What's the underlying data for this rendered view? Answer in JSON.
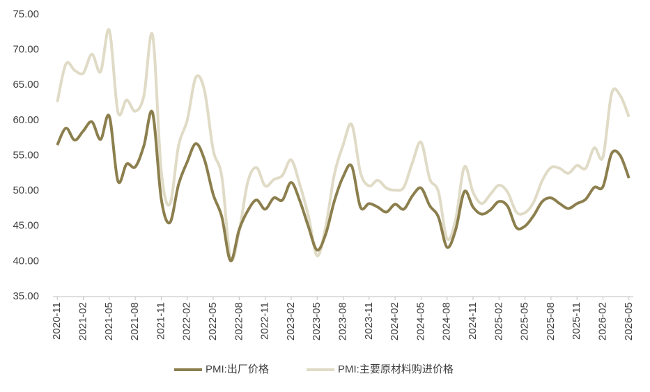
{
  "chart_data": {
    "type": "line",
    "categories": [
      "2020-11",
      null,
      null,
      "2021-02",
      null,
      null,
      "2021-05",
      null,
      null,
      "2021-08",
      null,
      null,
      "2021-11",
      null,
      null,
      "2022-02",
      null,
      null,
      "2022-05",
      null,
      null,
      "2022-08",
      null,
      null,
      "2022-11",
      null,
      null,
      "2023-02",
      null,
      null,
      "2023-05",
      null,
      null,
      "2023-08",
      null,
      null,
      "2023-11",
      null,
      null,
      "2024-02",
      null,
      null,
      "2024-05",
      null,
      null,
      "2024-08",
      null,
      null,
      "2024-11",
      null,
      null,
      "2025-02",
      null,
      null,
      "2025-05",
      null,
      null,
      "2025-08",
      null,
      null,
      "2025-11",
      null,
      null,
      "2026-02",
      null,
      null,
      "2026-05"
    ],
    "series": [
      {
        "name": "PMI:出厂价格",
        "color": "#8c7f4e",
        "values": [
          56.5,
          58.9,
          57.2,
          58.5,
          59.8,
          57.3,
          60.6,
          51.4,
          53.8,
          53.4,
          56.4,
          61.1,
          48.9,
          45.5,
          50.9,
          54.1,
          56.7,
          54.4,
          49.5,
          46.3,
          40.1,
          44.5,
          47.2,
          48.7,
          47.4,
          49.0,
          48.7,
          51.2,
          48.6,
          44.9,
          41.6,
          43.9,
          48.6,
          52.0,
          53.5,
          47.7,
          48.2,
          47.7,
          47.0,
          48.1,
          47.4,
          49.3,
          50.4,
          47.9,
          46.3,
          42.0,
          44.5,
          49.9,
          47.7,
          46.7,
          47.3,
          48.5,
          47.8,
          44.8,
          45.0,
          46.5,
          48.5,
          49.0,
          48.2,
          47.5,
          48.2,
          48.8,
          50.5,
          50.6,
          55.3,
          55.0,
          51.8
        ]
      },
      {
        "name": "PMI:主要原材料购进价格",
        "color": "#e0dbc6",
        "values": [
          62.6,
          68.0,
          67.1,
          66.7,
          69.4,
          66.9,
          72.8,
          61.2,
          62.9,
          61.3,
          63.5,
          72.1,
          52.9,
          48.1,
          56.4,
          60.0,
          66.1,
          64.2,
          55.8,
          52.0,
          40.4,
          44.3,
          51.3,
          53.3,
          50.7,
          51.6,
          52.2,
          54.4,
          50.9,
          46.4,
          40.8,
          45.0,
          52.4,
          56.5,
          59.4,
          52.6,
          50.7,
          51.5,
          50.4,
          50.1,
          50.5,
          54.0,
          56.9,
          51.7,
          49.9,
          43.2,
          46.0,
          53.4,
          49.8,
          48.2,
          49.5,
          50.8,
          49.8,
          47.0,
          46.9,
          48.4,
          51.5,
          53.3,
          53.2,
          52.5,
          53.6,
          53.2,
          56.1,
          54.8,
          63.8,
          63.5,
          60.5
        ]
      }
    ],
    "ylim": [
      35,
      75
    ],
    "yticks": [
      {
        "value": 35,
        "label": "35.00"
      },
      {
        "value": 40,
        "label": "40.00"
      },
      {
        "value": 45,
        "label": "45.00"
      },
      {
        "value": 50,
        "label": "50.00"
      },
      {
        "value": 55,
        "label": "55.00"
      },
      {
        "value": 60,
        "label": "60.00"
      },
      {
        "value": 65,
        "label": "65.00"
      },
      {
        "value": 70,
        "label": "70.00"
      },
      {
        "value": 75,
        "label": "75.00"
      }
    ],
    "legend": "bottom"
  }
}
